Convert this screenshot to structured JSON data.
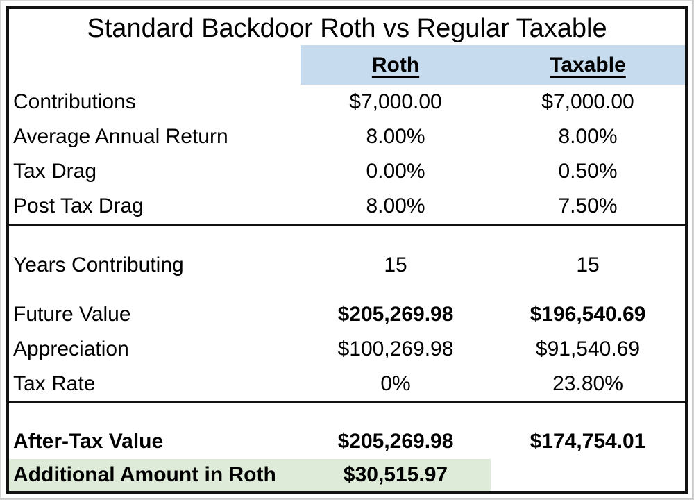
{
  "title": "Standard Backdoor Roth vs Regular Taxable",
  "header": {
    "roth": "Roth",
    "taxable": "Taxable"
  },
  "rows": {
    "contributions": {
      "label": "Contributions",
      "roth": "$7,000.00",
      "taxable": "$7,000.00"
    },
    "average_annual_return": {
      "label": "Average Annual Return",
      "roth": "8.00%",
      "taxable": "8.00%"
    },
    "tax_drag": {
      "label": "Tax Drag",
      "roth": "0.00%",
      "taxable": "0.50%"
    },
    "post_tax_drag": {
      "label": "Post Tax Drag",
      "roth": "8.00%",
      "taxable": "7.50%"
    },
    "years_contributing": {
      "label": "Years Contributing",
      "roth": "15",
      "taxable": "15"
    },
    "future_value": {
      "label": "Future Value",
      "roth": "$205,269.98",
      "taxable": "$196,540.69"
    },
    "appreciation": {
      "label": "Appreciation",
      "roth": "$100,269.98",
      "taxable": "$91,540.69"
    },
    "tax_rate": {
      "label": "Tax Rate",
      "roth": "0%",
      "taxable": "23.80%"
    },
    "after_tax_value": {
      "label": "After-Tax Value",
      "roth": "$205,269.98",
      "taxable": "$174,754.01"
    },
    "additional_in_roth": {
      "label": "Additional Amount in Roth",
      "roth": "$30,515.97",
      "taxable": ""
    }
  },
  "colors": {
    "header_background": "#C6DBED",
    "highlight_background": "#DEEBD8",
    "border": "#121212"
  }
}
